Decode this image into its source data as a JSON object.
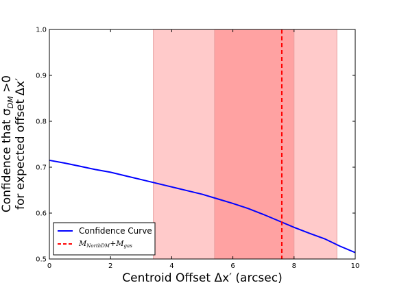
{
  "chart_data": {
    "type": "line",
    "xlabel": "Centroid Offset Δx′ (arcsec)",
    "ylabel_line1": "Confidence that σ",
    "ylabel_line1_sub": "DM",
    "ylabel_line1_tail": " >0",
    "ylabel_line2": "for expected offset Δx′",
    "xlim": [
      0,
      10
    ],
    "ylim": [
      0.5,
      1.0
    ],
    "xticks": [
      0,
      2,
      4,
      6,
      8,
      10
    ],
    "yticks": [
      0.5,
      0.6,
      0.7,
      0.8,
      0.9,
      1.0
    ],
    "xtick_labels": [
      "0",
      "2",
      "4",
      "6",
      "8",
      "10"
    ],
    "ytick_labels": [
      "0.5",
      "0.6",
      "0.7",
      "0.8",
      "0.9",
      "1.0"
    ],
    "grid": false,
    "legend_position": "lower-left",
    "series": [
      {
        "name": "Confidence Curve",
        "color": "#0000ff",
        "style": "solid",
        "x": [
          0,
          0.5,
          1,
          1.5,
          2,
          2.5,
          3,
          3.5,
          4,
          4.5,
          5,
          5.5,
          6,
          6.5,
          7,
          7.5,
          8,
          8.5,
          9,
          9.5,
          10
        ],
        "y": [
          0.715,
          0.709,
          0.702,
          0.695,
          0.689,
          0.681,
          0.673,
          0.665,
          0.657,
          0.649,
          0.641,
          0.631,
          0.621,
          0.61,
          0.597,
          0.583,
          0.569,
          0.556,
          0.544,
          0.528,
          0.514
        ]
      }
    ],
    "vline": {
      "name_main": "M",
      "name_sub1": "NorthDM",
      "name_plus": "+M",
      "name_sub2": "gas",
      "x": 7.6,
      "color": "#ff0000",
      "style": "dashed"
    },
    "bands": [
      {
        "x0": 3.4,
        "x1": 9.4,
        "color": "#ffcaca"
      },
      {
        "x0": 5.4,
        "x1": 8.0,
        "color": "#ffa2a2"
      }
    ]
  }
}
